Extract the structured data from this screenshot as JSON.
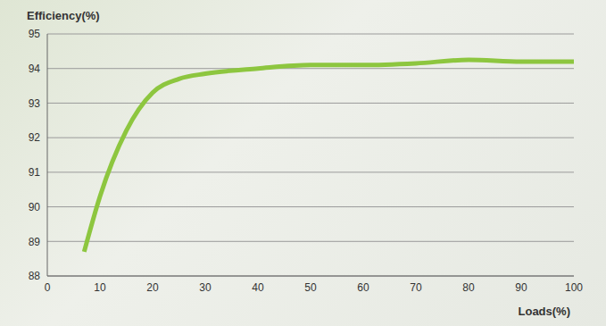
{
  "chart_data": {
    "type": "line",
    "x_label": "Loads(%)",
    "y_label": "Efficiency(%)",
    "x": [
      7,
      10,
      15,
      20,
      25,
      30,
      40,
      50,
      60,
      70,
      80,
      90,
      100
    ],
    "values": [
      88.7,
      90.3,
      92.2,
      93.3,
      93.7,
      93.85,
      94.0,
      94.1,
      94.1,
      94.15,
      94.25,
      94.2,
      94.2
    ],
    "color": "#8dc63f",
    "xlim": [
      0,
      100
    ],
    "xticks": [
      0,
      10,
      20,
      30,
      40,
      50,
      60,
      70,
      80,
      90,
      100
    ],
    "ylim": [
      88,
      95
    ],
    "yticks": [
      88,
      89,
      90,
      91,
      92,
      93,
      94,
      95
    ],
    "grid": true
  }
}
